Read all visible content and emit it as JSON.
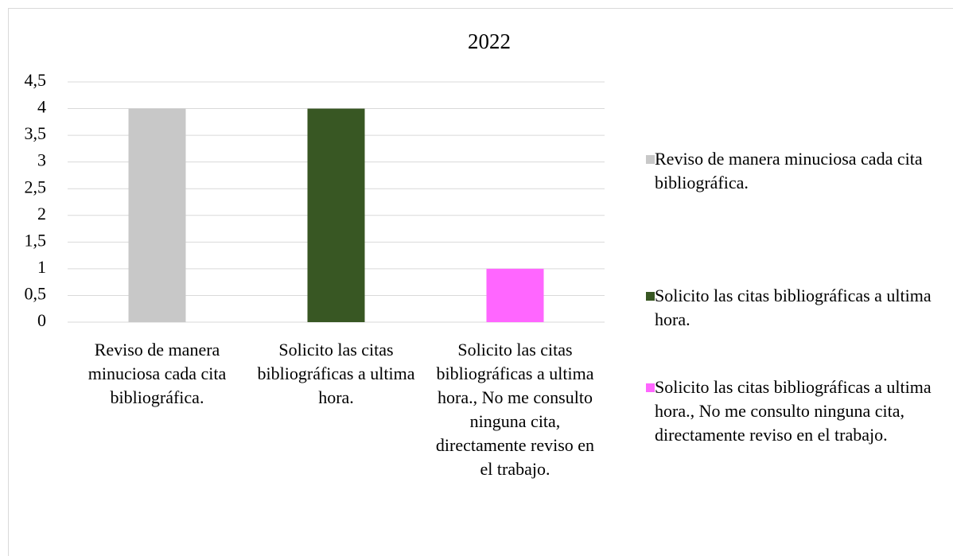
{
  "chart_data": {
    "type": "bar",
    "title": "2022",
    "categories": [
      "Reviso de manera minuciosa cada cita bibliográfica.",
      "Solicito las citas bibliográficas a ultima hora.",
      "Solicito las citas bibliográficas a ultima hora., No me consulto ninguna cita, directamente reviso en el trabajo."
    ],
    "values": [
      4,
      4,
      1
    ],
    "colors": [
      "#c8c8c8",
      "#385723",
      "#ff66ff"
    ],
    "ylim": [
      0,
      4.5
    ],
    "yticks": [
      0,
      {
        "value": 0.5,
        "label": "0,5"
      },
      1,
      {
        "value": 1.5,
        "label": "1,5"
      },
      2,
      {
        "value": 2.5,
        "label": "2,5"
      },
      3,
      {
        "value": 3.5,
        "label": "3,5"
      },
      4,
      {
        "value": 4.5,
        "label": "4,5"
      }
    ],
    "grid": true,
    "legend": "right"
  }
}
